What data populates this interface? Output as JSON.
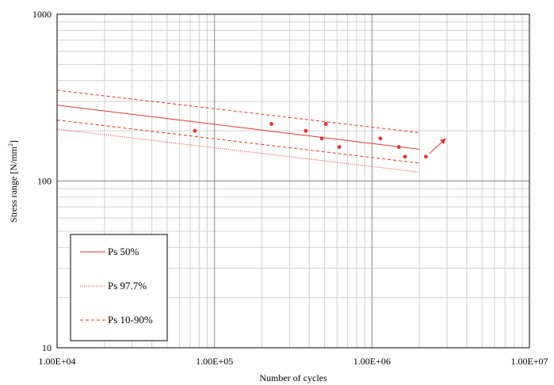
{
  "chart_data": {
    "type": "scatter",
    "title": "",
    "xlabel": "Number of cycles",
    "ylabel_main": "Stress range [N/mm",
    "ylabel_sup": "2",
    "ylabel_end": "]",
    "x_scale": "log",
    "y_scale": "log",
    "xlim": [
      10000,
      10000000
    ],
    "ylim": [
      10,
      1000
    ],
    "grid": true,
    "x_ticks": [
      {
        "value": 10000,
        "label": "1.00E+04"
      },
      {
        "value": 100000,
        "label": "1.00E+05"
      },
      {
        "value": 1000000,
        "label": "1.00E+06"
      },
      {
        "value": 10000000,
        "label": "1.00E+07"
      }
    ],
    "y_ticks": [
      {
        "value": 10,
        "label": "10"
      },
      {
        "value": 100,
        "label": "100"
      },
      {
        "value": 1000,
        "label": "1000"
      }
    ],
    "points": [
      {
        "x": 75000,
        "y": 200
      },
      {
        "x": 230000,
        "y": 220
      },
      {
        "x": 380000,
        "y": 200
      },
      {
        "x": 480000,
        "y": 180
      },
      {
        "x": 510000,
        "y": 220
      },
      {
        "x": 620000,
        "y": 160
      },
      {
        "x": 1130000,
        "y": 180
      },
      {
        "x": 1480000,
        "y": 160
      },
      {
        "x": 1620000,
        "y": 140
      },
      {
        "x": 2200000,
        "y": 140
      }
    ],
    "runout": {
      "from": [
        2200000,
        140
      ],
      "to": [
        2950000,
        180
      ]
    },
    "lines": [
      {
        "name": "Ps 50%",
        "style": "solid",
        "points": [
          [
            10000,
            285
          ],
          [
            2000000,
            155
          ]
        ]
      },
      {
        "name": "Ps 97.7%",
        "style": "dotted",
        "points": [
          [
            10000,
            205
          ],
          [
            2000000,
            113
          ]
        ]
      },
      {
        "name": "Ps 10-90%",
        "style": "dashed",
        "points": [
          [
            10000,
            350
          ],
          [
            2000000,
            195
          ]
        ]
      },
      {
        "name": "Ps 10-90%",
        "style": "dashed",
        "points": [
          [
            10000,
            232
          ],
          [
            2000000,
            128
          ]
        ]
      }
    ],
    "legend": {
      "position": "bottom-left",
      "entries": [
        {
          "label": "Ps 50%",
          "style": "solid"
        },
        {
          "label": "Ps 97.7%",
          "style": "dotted"
        },
        {
          "label": "Ps 10-90%",
          "style": "dashed"
        }
      ]
    },
    "colors": {
      "series": "#e8312b",
      "grid_major": "#888888",
      "grid_minor": "#d0d0d0"
    }
  }
}
